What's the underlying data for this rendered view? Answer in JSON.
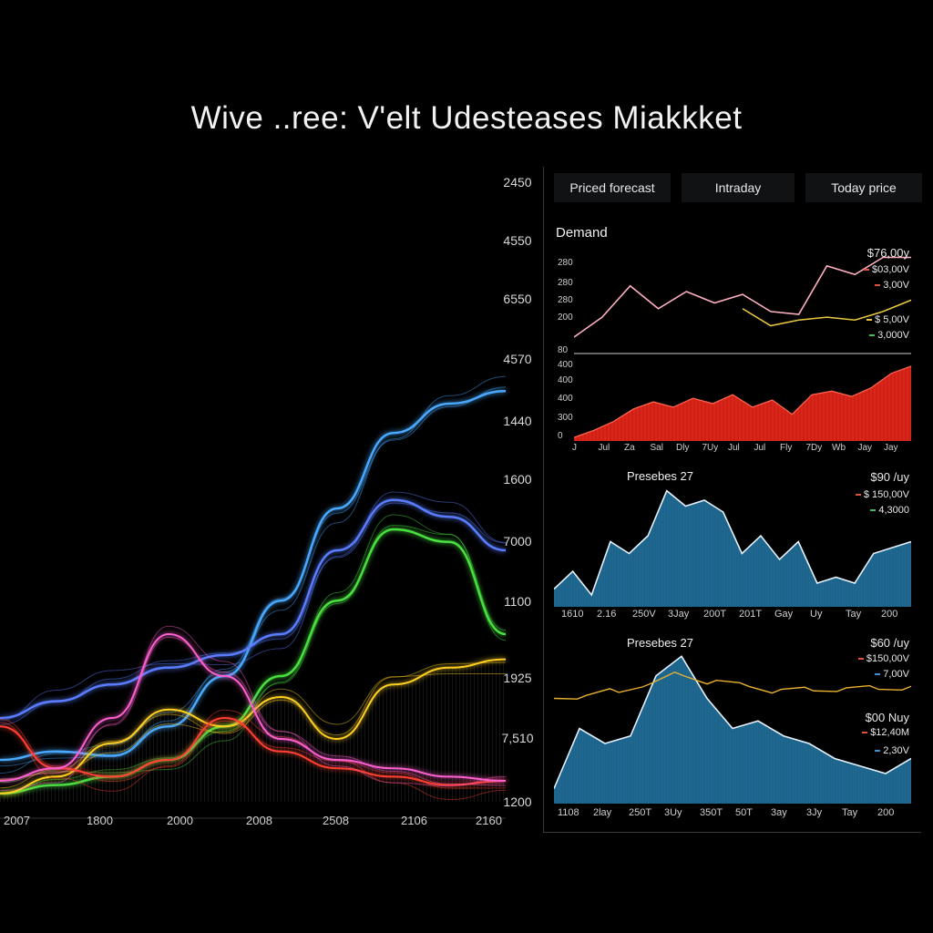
{
  "title": "Wive ..ree: V'elt Udesteases Miakkket",
  "tabs": [
    "Priced forecast",
    "Intraday",
    "Today price"
  ],
  "demand_label": "Demand",
  "left_y_ticks": [
    "2450",
    "4550",
    "6550",
    "4570",
    "1440",
    "1600",
    "7000",
    "1100",
    "1925",
    "7,510",
    "1200"
  ],
  "left_x_ticks": [
    "2007",
    "1800",
    "2000",
    "2008",
    "2508",
    "2106",
    "2160"
  ],
  "panel1": {
    "y_ticks": [
      "280",
      "280",
      "280",
      "200",
      "80"
    ],
    "values": [
      "$76,00y",
      "$03,00V",
      "3,00V",
      "$ 5,00V",
      "3,000V"
    ],
    "value_colors": [
      "#ffffff",
      "#e0503c",
      "#e0503c",
      "#e8c840",
      "#3fbf5a"
    ]
  },
  "panel2": {
    "y_ticks": [
      "400",
      "400",
      "400",
      "300",
      "0"
    ],
    "x_ticks": [
      "J",
      "Jul",
      "Za",
      "Sal",
      "Dly",
      "7Uy",
      "Jul",
      "Jul",
      "Fly",
      "7Dy",
      "Wb",
      "Jay",
      "Jay"
    ]
  },
  "panel3": {
    "label": "Presebes 27",
    "values": [
      "$90 /uy",
      "$ 150,00V",
      "4,3000"
    ],
    "value_colors": [
      "#ffffff",
      "#e0503c",
      "#3fbf5a"
    ],
    "x_ticks": [
      "1610",
      "2.16",
      "250V",
      "3Jay",
      "200T",
      "201T",
      "Gay",
      "Uy",
      "Tay",
      "200"
    ]
  },
  "panel4": {
    "label": "Presebes 27",
    "values_top": [
      "$60 /uy",
      "$150,00V",
      "7,00V"
    ],
    "values_top_colors": [
      "#ffffff",
      "#e0503c",
      "#3f8fd0"
    ],
    "values_bottom": [
      "$00 Nuy",
      "$12,40M",
      "2,30V"
    ],
    "values_bottom_colors": [
      "#ffffff",
      "#e0503c",
      "#3f8fd0"
    ],
    "x_ticks": [
      "1108",
      "2lay",
      "250T",
      "3Uy",
      "350T",
      "50T",
      "3ay",
      "3Jy",
      "Tay",
      "200"
    ]
  },
  "chart_data": [
    {
      "type": "line",
      "title": "",
      "series": [
        {
          "color": "#4aa8ff",
          "values": [
            10,
            12,
            11,
            18,
            30,
            48,
            70,
            88,
            95,
            98
          ]
        },
        {
          "color": "#5a7dff",
          "values": [
            20,
            24,
            28,
            32,
            35,
            40,
            60,
            72,
            68,
            60
          ]
        },
        {
          "color": "#48e040",
          "values": [
            2,
            4,
            6,
            10,
            18,
            30,
            48,
            65,
            62,
            40
          ]
        },
        {
          "color": "#ffd020",
          "values": [
            2,
            6,
            14,
            22,
            18,
            25,
            15,
            28,
            32,
            34
          ]
        },
        {
          "color": "#ff4030",
          "values": [
            18,
            8,
            6,
            10,
            20,
            12,
            8,
            6,
            4,
            5
          ]
        },
        {
          "color": "#ff60d0",
          "values": [
            5,
            8,
            20,
            40,
            30,
            15,
            10,
            8,
            6,
            5
          ]
        }
      ]
    },
    {
      "type": "line",
      "title": "Demand",
      "series": [
        {
          "color": "#ffb0c0",
          "values": [
            80,
            150,
            260,
            180,
            240,
            200,
            230,
            170,
            160,
            330,
            300,
            360,
            360
          ]
        },
        {
          "color": "#e8c840",
          "values": [
            null,
            null,
            null,
            null,
            null,
            null,
            180,
            120,
            140,
            150,
            140,
            170,
            210
          ]
        }
      ]
    },
    {
      "type": "area",
      "color": "#e8261a",
      "values": [
        20,
        60,
        110,
        180,
        220,
        190,
        240,
        210,
        260,
        190,
        230,
        150,
        260,
        280,
        250,
        300,
        380,
        420
      ]
    },
    {
      "type": "area",
      "title": "Presebes 27",
      "color": "#1f6a94",
      "values": [
        15,
        30,
        10,
        55,
        45,
        60,
        98,
        85,
        90,
        80,
        45,
        60,
        40,
        55,
        20,
        25,
        20,
        45,
        50,
        55
      ]
    },
    {
      "type": "area",
      "title": "Presebes 27",
      "series": [
        {
          "color": "#1f6a94",
          "values": [
            10,
            50,
            40,
            45,
            85,
            98,
            70,
            50,
            55,
            45,
            40,
            30,
            25,
            20,
            30
          ]
        },
        {
          "color": "#e8b030",
          "values": [
            70,
            72,
            74,
            80,
            85,
            82,
            78,
            76,
            75,
            77,
            76,
            78
          ]
        }
      ]
    }
  ]
}
